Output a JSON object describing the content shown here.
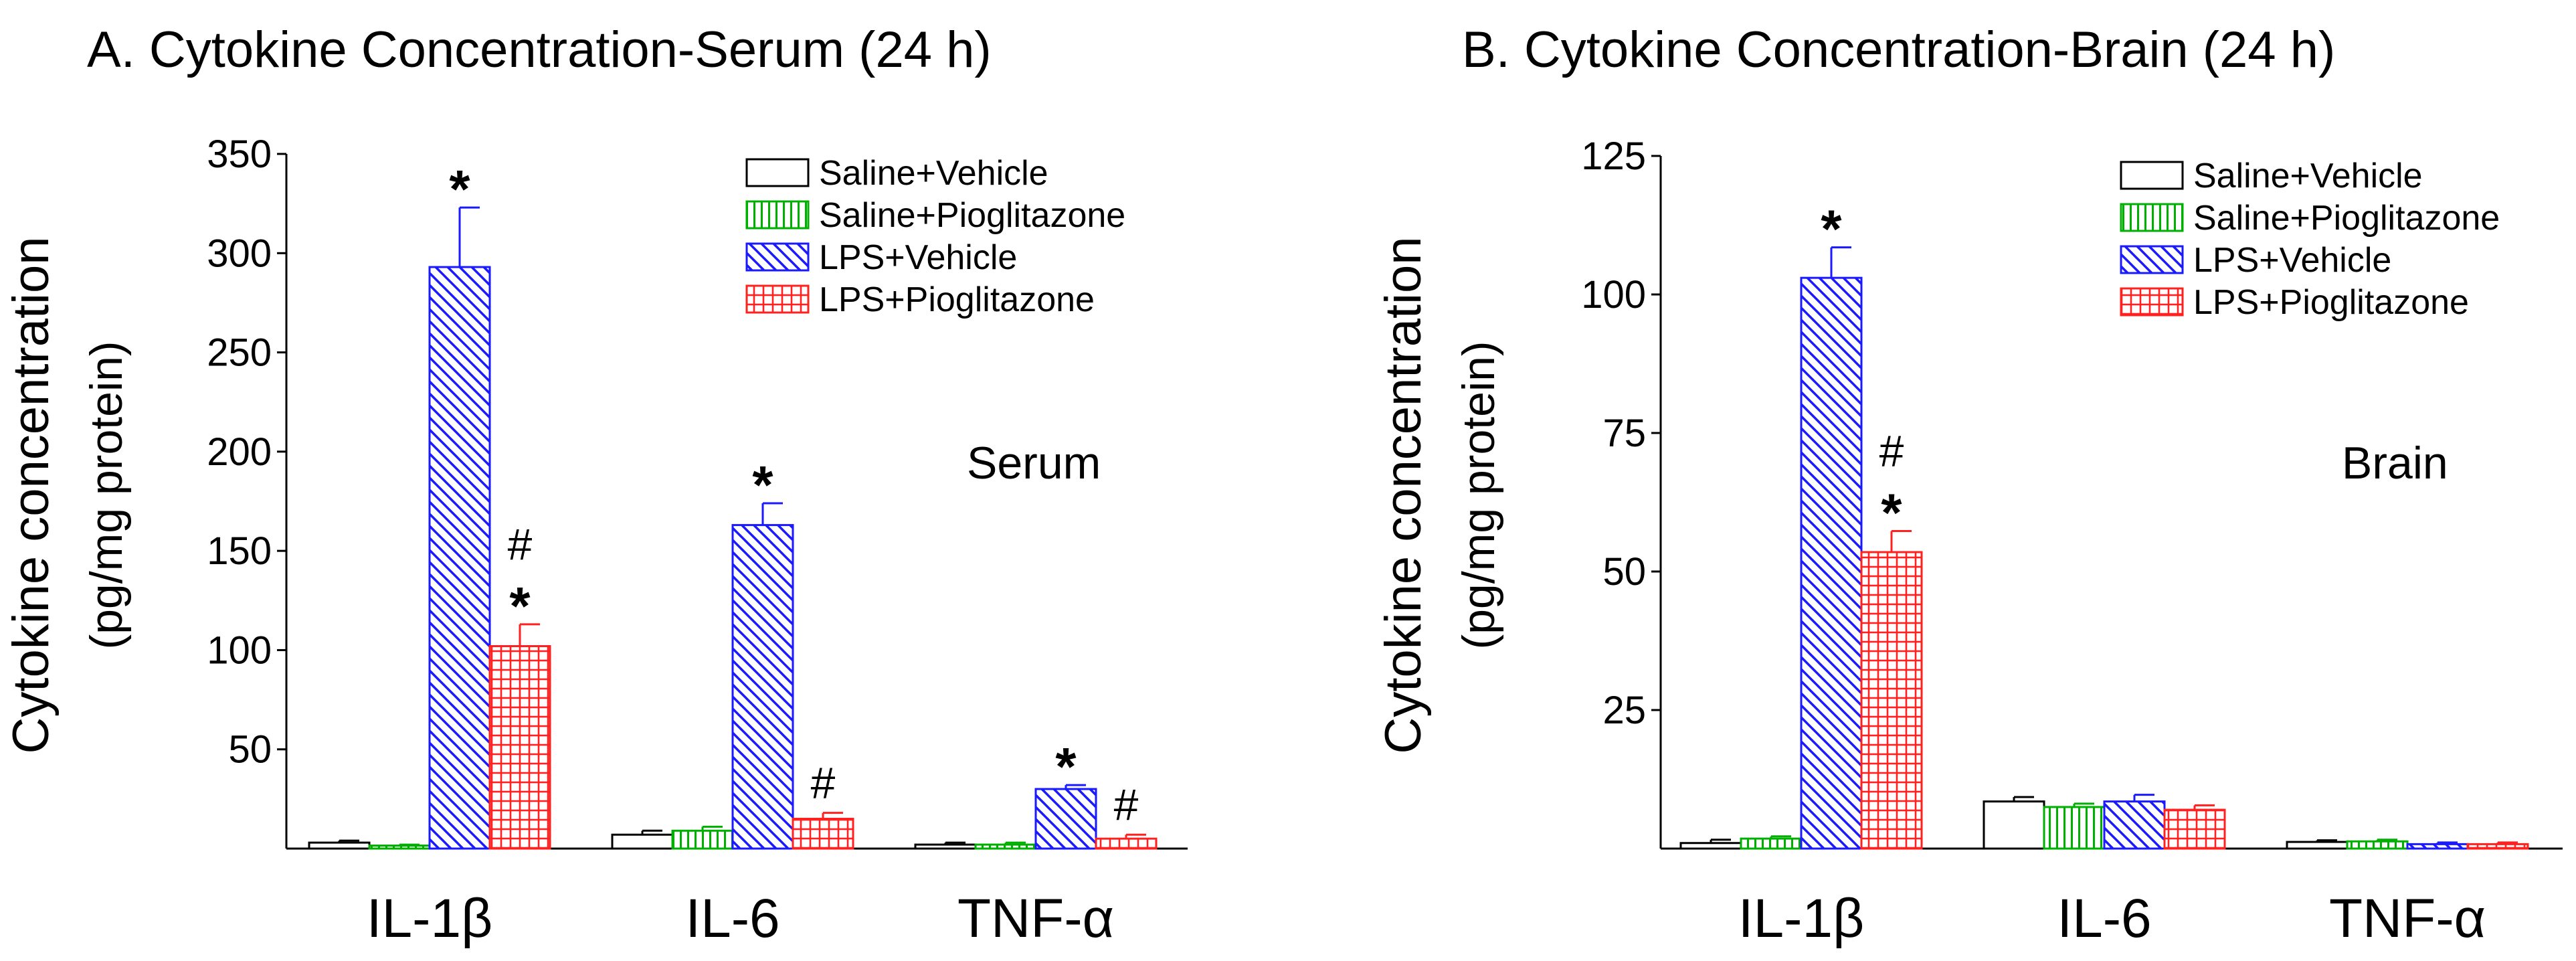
{
  "colors": {
    "saline_vehicle": "#000000",
    "saline_pioglitazone": "#00b000",
    "lps_vehicle": "#1a1aff",
    "lps_pioglitazone": "#ff2020"
  },
  "chart_data": [
    {
      "type": "bar",
      "title": "A. Cytokine Concentration-Serum (24 h)",
      "ylabel_line1": "Cytokine concentration",
      "ylabel_line2": "(pg/mg protein)",
      "annotation": "Serum",
      "ylim": [
        0,
        350
      ],
      "yticks": [
        "50",
        "100",
        "150",
        "200",
        "250",
        "300",
        "350"
      ],
      "categories": [
        "IL-1β",
        "IL-6",
        "TNF-α"
      ],
      "legend_position": "top-right",
      "series": [
        {
          "name": "Saline+Vehicle",
          "pattern": "none",
          "color": "#000000",
          "values": [
            3,
            7,
            2
          ],
          "errors": [
            1,
            2,
            1
          ],
          "marks": [
            "",
            "",
            ""
          ]
        },
        {
          "name": "Saline+Pioglitazone",
          "pattern": "vertical",
          "color": "#00b000",
          "values": [
            1.5,
            9,
            2
          ],
          "errors": [
            0.5,
            2,
            1
          ],
          "marks": [
            "",
            "",
            ""
          ]
        },
        {
          "name": "LPS+Vehicle",
          "pattern": "diagonal",
          "color": "#1a1aff",
          "values": [
            293,
            163,
            30
          ],
          "errors": [
            30,
            11,
            2
          ],
          "marks": [
            "*",
            "*",
            "*"
          ]
        },
        {
          "name": "LPS+Pioglitazone",
          "pattern": "grid",
          "color": "#ff2020",
          "values": [
            102,
            15,
            5
          ],
          "errors": [
            11,
            3,
            2
          ],
          "marks": [
            "#\n*",
            "#",
            "#"
          ]
        }
      ]
    },
    {
      "type": "bar",
      "title": "B. Cytokine Concentration-Brain (24 h)",
      "ylabel_line1": "Cytokine concentration",
      "ylabel_line2": "(pg/mg protein)",
      "annotation": "Brain",
      "ylim": [
        0,
        125
      ],
      "yticks": [
        "25",
        "50",
        "75",
        "100",
        "125"
      ],
      "categories": [
        "IL-1β",
        "IL-6",
        "TNF-α"
      ],
      "legend_position": "top-right",
      "series": [
        {
          "name": "Saline+Vehicle",
          "pattern": "none",
          "color": "#000000",
          "values": [
            1,
            8.5,
            1.2
          ],
          "errors": [
            0.6,
            0.8,
            0.3
          ],
          "marks": [
            "",
            "",
            ""
          ]
        },
        {
          "name": "Saline+Pioglitazone",
          "pattern": "vertical",
          "color": "#00b000",
          "values": [
            1.8,
            7.5,
            1.3
          ],
          "errors": [
            0.4,
            0.6,
            0.3
          ],
          "marks": [
            "",
            "",
            ""
          ]
        },
        {
          "name": "LPS+Vehicle",
          "pattern": "diagonal",
          "color": "#1a1aff",
          "values": [
            103,
            8.5,
            0.8
          ],
          "errors": [
            5.5,
            1.2,
            0.3
          ],
          "marks": [
            "*",
            "",
            ""
          ]
        },
        {
          "name": "LPS+Pioglitazone",
          "pattern": "grid",
          "color": "#ff2020",
          "values": [
            53.5,
            7,
            0.8
          ],
          "errors": [
            3.8,
            0.8,
            0.3
          ],
          "marks": [
            "#\n*",
            "",
            ""
          ]
        }
      ]
    }
  ]
}
